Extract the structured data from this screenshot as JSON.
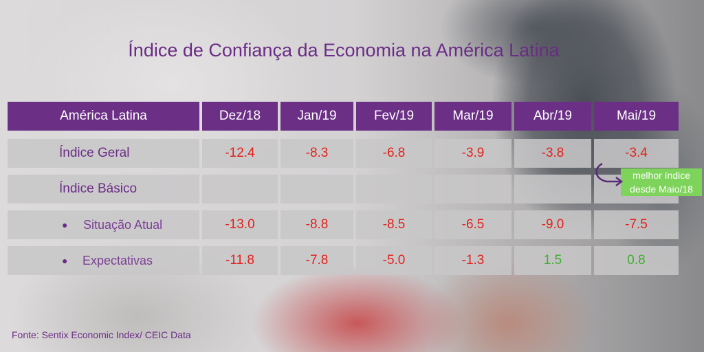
{
  "title": "Índice de Confiança da Economia na América Latina",
  "source": "Fonte: Sentix Economic Index/ CEIC Data",
  "annotation": {
    "line1": "melhor índice",
    "line2": "desde Maio/18",
    "icon": "curved-arrow-icon"
  },
  "colors": {
    "header_bg": "#6b2f86",
    "label_text": "#6a2c86",
    "negative": "#e3211b",
    "positive": "#3fae2f",
    "annotation_bg": "#7ed35b"
  },
  "chart_data": {
    "type": "table",
    "title": "Índice de Confiança da Economia na América Latina",
    "header": "América Latina",
    "columns": [
      "Dez/18",
      "Jan/19",
      "Fev/19",
      "Mar/19",
      "Abr/19",
      "Mai/19"
    ],
    "rows": [
      {
        "label": "Índice Geral",
        "values": [
          "-12.4",
          "-8.3",
          "-6.8",
          "-3.9",
          "-3.8",
          "-3.4"
        ]
      },
      {
        "label": "Índice Básico",
        "values": []
      },
      {
        "label": "Situação Atual",
        "values": [
          "-13.0",
          "-8.8",
          "-8.5",
          "-6.5",
          "-9.0",
          "-7.5"
        ]
      },
      {
        "label": "Expectativas",
        "values": [
          "-11.8",
          "-7.8",
          "-5.0",
          "-1.3",
          "1.5",
          "0.8"
        ]
      }
    ]
  }
}
